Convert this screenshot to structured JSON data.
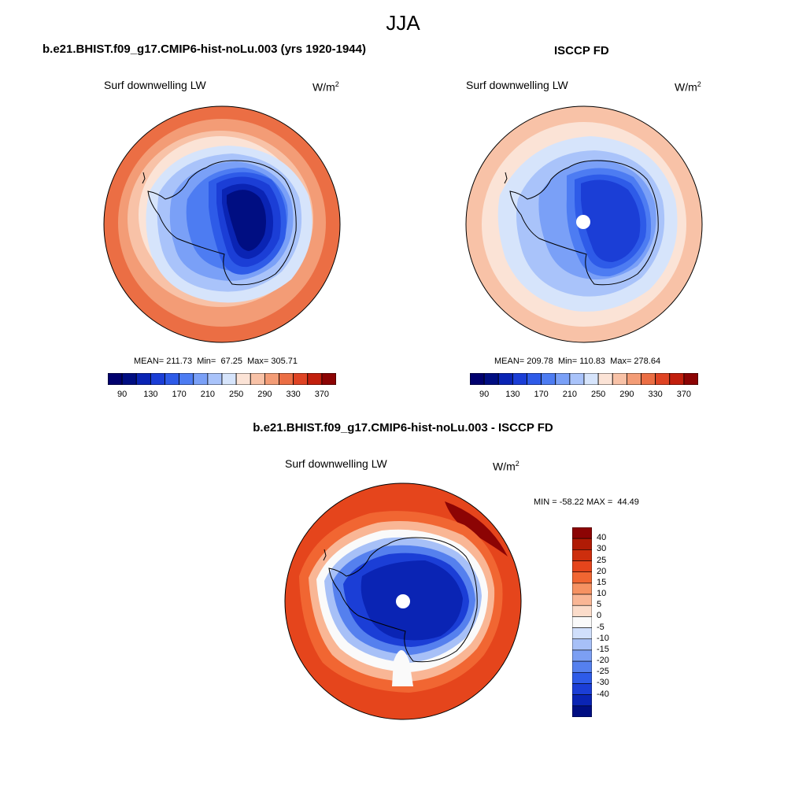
{
  "title": "JJA",
  "variable": "Surf downwelling LW",
  "units_base": "W/m",
  "units_exp": "2",
  "panels": {
    "model": {
      "title": "b.e21.BHIST.f09_g17.CMIP6-hist-noLu.003 (yrs 1920-1944)",
      "stats": "MEAN= 211.73  Min=  67.25  Max= 305.71"
    },
    "obs": {
      "title": "ISCCP FD",
      "stats": "MEAN= 209.78  Min= 110.83  Max= 278.64"
    },
    "diff": {
      "title": "b.e21.BHIST.f09_g17.CMIP6-hist-noLu.003 - ISCCP FD",
      "stats": "MIN = -58.22 MAX =  44.49"
    }
  },
  "chart_data": [
    {
      "type": "heatmap",
      "title": "b.e21.BHIST.f09_g17.CMIP6-hist-noLu.003 (yrs 1920-1944)",
      "variable": "Surf downwelling LW",
      "units": "W/m2",
      "projection": "south polar stereographic",
      "mean": 211.73,
      "min": 67.25,
      "max": 305.71,
      "colorbar_levels": [
        90,
        110,
        130,
        150,
        170,
        190,
        210,
        230,
        250,
        270,
        290,
        310,
        330,
        350,
        370
      ],
      "colorbar_labels": [
        "90",
        "130",
        "170",
        "210",
        "250",
        "290",
        "330",
        "370"
      ]
    },
    {
      "type": "heatmap",
      "title": "ISCCP FD",
      "variable": "Surf downwelling LW",
      "units": "W/m2",
      "projection": "south polar stereographic",
      "mean": 209.78,
      "min": 110.83,
      "max": 278.64,
      "colorbar_levels": [
        90,
        110,
        130,
        150,
        170,
        190,
        210,
        230,
        250,
        270,
        290,
        310,
        330,
        350,
        370
      ],
      "colorbar_labels": [
        "90",
        "130",
        "170",
        "210",
        "250",
        "290",
        "330",
        "370"
      ]
    },
    {
      "type": "heatmap",
      "title": "b.e21.BHIST.f09_g17.CMIP6-hist-noLu.003 - ISCCP FD",
      "variable": "Surf downwelling LW",
      "units": "W/m2",
      "projection": "south polar stereographic",
      "min": -58.22,
      "max": 44.49,
      "colorbar_labels": [
        "40",
        "30",
        "25",
        "20",
        "15",
        "10",
        "5",
        "0",
        "-5",
        "-10",
        "-15",
        "-20",
        "-25",
        "-30",
        "-40"
      ]
    }
  ],
  "colors": {
    "abs_palette": [
      "#000e82",
      "#0a24b4",
      "#1b3ed6",
      "#2e5be8",
      "#4d7cf2",
      "#7aa0f7",
      "#a9c3fa",
      "#d6e4fb",
      "#fbe3d6",
      "#f8c2a7",
      "#f39c76",
      "#eb6e44",
      "#df4424",
      "#c21f0d",
      "#8c0404"
    ],
    "diff_palette": [
      "#8c0404",
      "#b01b05",
      "#cd2e0d",
      "#e5451c",
      "#f16632",
      "#f69262",
      "#f9b695",
      "#fbdcca",
      "#fafafa",
      "#d0dffb",
      "#a7c0f7",
      "#7c9ff3",
      "#5580ee",
      "#2e5be8",
      "#1b3ed6",
      "#0a24b4",
      "#000e82"
    ]
  }
}
